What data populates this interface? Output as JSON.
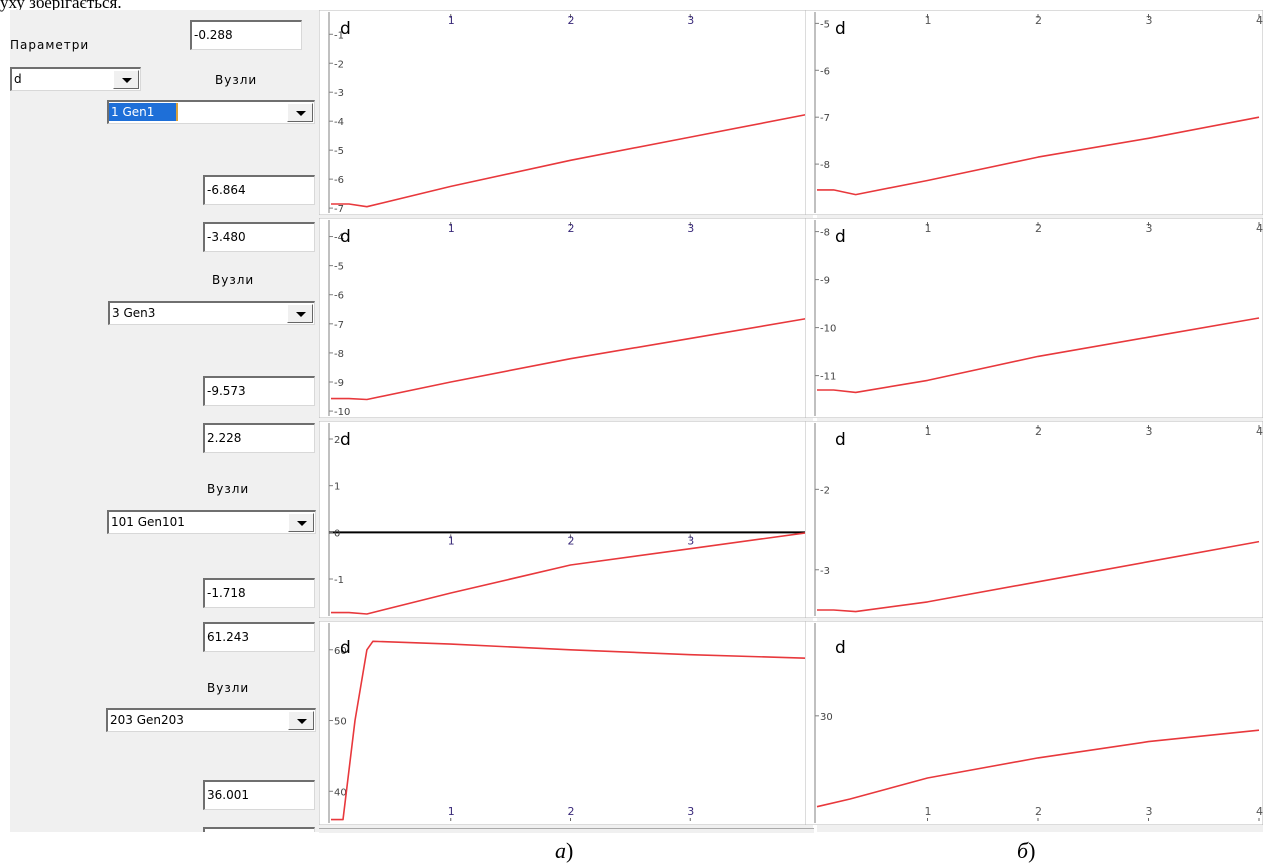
{
  "top_text": "уху зберігається.",
  "controls": {
    "params_label": "Параметри",
    "params_value": "d",
    "nodes_label": "Вузли"
  },
  "plot_label": "d",
  "x_ticks": [
    "1",
    "2",
    "3",
    "4"
  ],
  "panel_a": {
    "rows": [
      {
        "top_value": "-0.288",
        "bottom_value": "-6.864",
        "node": "1   Gen1",
        "y_ticks": [
          {
            "v": -1,
            "t": "-1"
          },
          {
            "v": -2,
            "t": "-2"
          },
          {
            "v": -3,
            "t": "-3"
          },
          {
            "v": -4,
            "t": "-4"
          },
          {
            "v": -5,
            "t": "-5"
          },
          {
            "v": -6,
            "t": "-6"
          },
          {
            "v": -7,
            "t": "-7"
          }
        ]
      },
      {
        "top_value": "-3.480",
        "bottom_value": "-9.573",
        "node": "3   Gen3",
        "y_ticks": [
          {
            "v": -4,
            "t": "-4"
          },
          {
            "v": -5,
            "t": "-5"
          },
          {
            "v": -6,
            "t": "-6"
          },
          {
            "v": -7,
            "t": "-7"
          },
          {
            "v": -8,
            "t": "-8"
          },
          {
            "v": -9,
            "t": "-9"
          },
          {
            "v": -10,
            "t": "-10"
          }
        ]
      },
      {
        "top_value": "2.228",
        "bottom_value": "-1.718",
        "node": "101   Gen101",
        "y_ticks": [
          {
            "v": 2,
            "t": "2"
          },
          {
            "v": 1,
            "t": "1"
          },
          {
            "v": 0,
            "t": "0"
          },
          {
            "v": -1,
            "t": "-1"
          }
        ]
      },
      {
        "top_value": "61.243",
        "bottom_value": "36.001",
        "node": "203   Gen203",
        "y_ticks": [
          {
            "v": 60,
            "t": "60"
          },
          {
            "v": 50,
            "t": "50"
          },
          {
            "v": 40,
            "t": "40"
          }
        ]
      }
    ]
  },
  "panel_b": {
    "rows": [
      {
        "y_ticks": [
          {
            "v": -5,
            "t": "-5"
          },
          {
            "v": -6,
            "t": "-6"
          },
          {
            "v": -7,
            "t": "-7"
          },
          {
            "v": -8,
            "t": "-8"
          }
        ]
      },
      {
        "y_ticks": [
          {
            "v": -8,
            "t": "-8"
          },
          {
            "v": -9,
            "t": "-9"
          },
          {
            "v": -10,
            "t": "-10"
          },
          {
            "v": -11,
            "t": "-11"
          }
        ]
      },
      {
        "y_ticks": [
          {
            "v": -2,
            "t": "-2"
          },
          {
            "v": -3,
            "t": "-3"
          }
        ]
      },
      {
        "y_ticks": [
          {
            "v": 30,
            "t": "30"
          }
        ]
      }
    ]
  },
  "captions": {
    "a": "а",
    "b": "б",
    "paren": ")"
  },
  "colors": {
    "curve": "#e8383c",
    "axis": "#808080",
    "zero_line": "#000000",
    "panel_bg": "#f0f0f0"
  },
  "chart_data": [
    {
      "type": "line",
      "panel": "а",
      "row": 1,
      "ylim": [
        -7.1,
        -0.3
      ],
      "xlim": [
        0,
        4
      ],
      "x_ticks": [
        1,
        2,
        3,
        4
      ],
      "series": [
        {
          "x": [
            0,
            0.15,
            0.3,
            1,
            2,
            3,
            4
          ],
          "y": [
            -6.86,
            -6.86,
            -6.95,
            -6.25,
            -5.35,
            -4.55,
            -3.75
          ]
        }
      ]
    },
    {
      "type": "line",
      "panel": "а",
      "row": 2,
      "ylim": [
        -10.1,
        -3.5
      ],
      "xlim": [
        0,
        4
      ],
      "x_ticks": [
        1,
        2,
        3,
        4
      ],
      "series": [
        {
          "x": [
            0,
            0.15,
            0.3,
            1,
            2,
            3,
            4
          ],
          "y": [
            -9.57,
            -9.57,
            -9.6,
            -9.0,
            -8.2,
            -7.5,
            -6.8
          ]
        }
      ]
    },
    {
      "type": "line",
      "panel": "а",
      "row": 3,
      "ylim": [
        -1.75,
        2.3
      ],
      "xlim": [
        0,
        4
      ],
      "x_ticks": [
        1,
        2,
        3,
        4
      ],
      "zero_line": true,
      "series": [
        {
          "x": [
            0,
            0.15,
            0.3,
            1,
            2,
            3,
            4
          ],
          "y": [
            -1.72,
            -1.72,
            -1.75,
            -1.3,
            -0.7,
            -0.35,
            0.0
          ]
        }
      ]
    },
    {
      "type": "line",
      "panel": "а",
      "row": 4,
      "ylim": [
        35.8,
        63.5
      ],
      "xlim": [
        0,
        4
      ],
      "x_ticks": [
        1,
        2,
        3,
        4
      ],
      "series": [
        {
          "x": [
            0,
            0.1,
            0.2,
            0.3,
            0.35,
            1,
            2,
            3,
            4
          ],
          "y": [
            36.0,
            36.0,
            50.0,
            60.0,
            61.2,
            60.8,
            60.0,
            59.3,
            58.8
          ]
        }
      ]
    },
    {
      "type": "line",
      "panel": "б",
      "row": 1,
      "ylim": [
        -9.0,
        -4.8
      ],
      "xlim": [
        0,
        4
      ],
      "x_ticks": [
        1,
        2,
        3,
        4
      ],
      "series": [
        {
          "x": [
            0,
            0.15,
            0.35,
            1,
            2,
            3,
            4
          ],
          "y": [
            -8.55,
            -8.55,
            -8.65,
            -8.35,
            -7.85,
            -7.45,
            -7.0
          ]
        }
      ]
    },
    {
      "type": "line",
      "panel": "б",
      "row": 2,
      "ylim": [
        -11.8,
        -7.8
      ],
      "xlim": [
        0,
        4
      ],
      "x_ticks": [
        1,
        2,
        3,
        4
      ],
      "series": [
        {
          "x": [
            0,
            0.15,
            0.35,
            1,
            2,
            3,
            4
          ],
          "y": [
            -11.3,
            -11.3,
            -11.35,
            -11.1,
            -10.6,
            -10.2,
            -9.8
          ]
        }
      ]
    },
    {
      "type": "line",
      "panel": "б",
      "row": 3,
      "ylim": [
        -3.55,
        -1.2
      ],
      "xlim": [
        0,
        4
      ],
      "x_ticks": [
        1,
        2,
        3,
        4
      ],
      "series": [
        {
          "x": [
            0,
            0.15,
            0.35,
            1,
            2,
            3,
            4
          ],
          "y": [
            -3.5,
            -3.5,
            -3.52,
            -3.4,
            -3.15,
            -2.9,
            -2.65
          ]
        }
      ]
    },
    {
      "type": "line",
      "panel": "б",
      "row": 4,
      "ylim": [
        19.0,
        39.5
      ],
      "xlim": [
        0,
        4
      ],
      "x_ticks": [
        1,
        2,
        3,
        4
      ],
      "series": [
        {
          "x": [
            0,
            0.3,
            1,
            2,
            3,
            4
          ],
          "y": [
            20.5,
            21.3,
            23.5,
            25.6,
            27.3,
            28.5
          ]
        }
      ]
    }
  ]
}
